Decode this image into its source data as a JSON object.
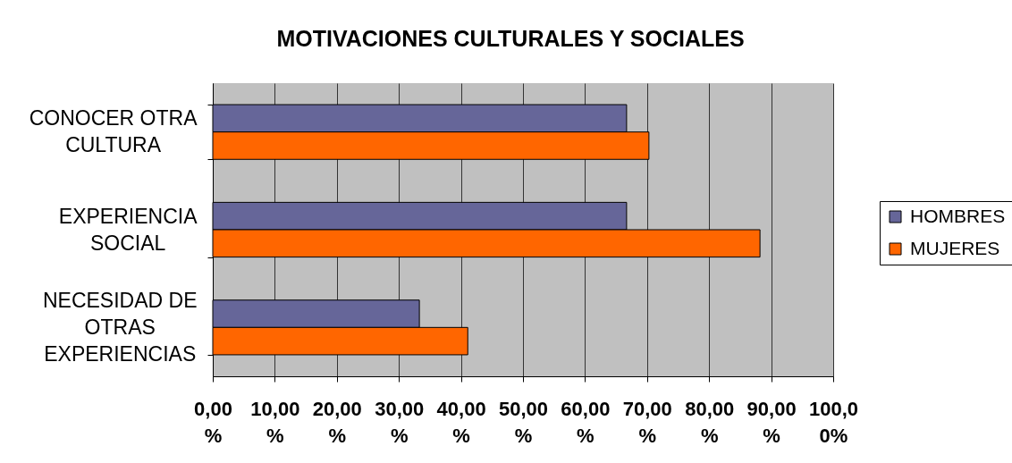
{
  "chart_data": {
    "type": "bar",
    "title": "MOTIVACIONES CULTURALES Y SOCIALES",
    "orientation": "horizontal",
    "categories": [
      "CONOCER OTRA CULTURA",
      "EXPERIENCIA SOCIAL",
      "NECESIDAD DE OTRAS EXPERIENCIAS"
    ],
    "series": [
      {
        "name": "HOMBRES",
        "color": "#666699",
        "values": [
          66.7,
          66.7,
          33.3
        ]
      },
      {
        "name": "MUJERES",
        "color": "#ff6600",
        "values": [
          70.3,
          88.2,
          41.1
        ]
      }
    ],
    "xlim": [
      0,
      100
    ],
    "xticks": [
      {
        "value": 0,
        "label": "0,00%"
      },
      {
        "value": 10,
        "label": "10,00%"
      },
      {
        "value": 20,
        "label": "20,00%"
      },
      {
        "value": 30,
        "label": "30,00%"
      },
      {
        "value": 40,
        "label": "40,00%"
      },
      {
        "value": 50,
        "label": "50,00%"
      },
      {
        "value": 60,
        "label": "60,00%"
      },
      {
        "value": 70,
        "label": "70,00%"
      },
      {
        "value": 80,
        "label": "80,00%"
      },
      {
        "value": 90,
        "label": "90,00%"
      },
      {
        "value": 100,
        "label": "100,00%"
      }
    ],
    "grid": "x",
    "legend": "right"
  }
}
